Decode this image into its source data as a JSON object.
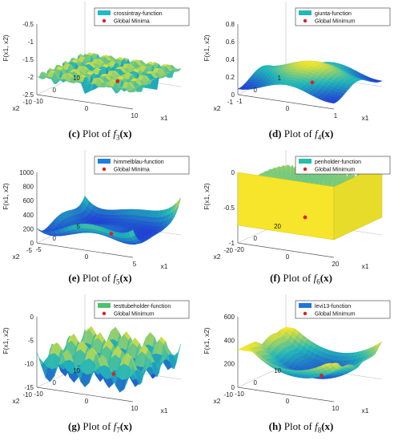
{
  "chart_data": [
    {
      "type": "surface",
      "caption_tag": "(c)",
      "caption_text": "Plot of",
      "caption_func": "f",
      "caption_sub": "3",
      "caption_arg": "(x)",
      "zlabel": "F(x1, x2)",
      "xlabel": "x1",
      "ylabel": "x2",
      "legend": [
        "crossintray-function",
        "Global Minima"
      ],
      "z_ticks": [
        "-0.5",
        "-1",
        "-1.5",
        "-2",
        "-2.5"
      ],
      "x1_ticks": [
        "-10",
        "0",
        "10"
      ],
      "x2_ticks": [
        "10",
        "0",
        "-10"
      ],
      "zlim": [
        -2.5,
        -0.5
      ],
      "xlim": [
        -10,
        10
      ],
      "ylim": [
        -10,
        10
      ]
    },
    {
      "type": "surface",
      "caption_tag": "(d)",
      "caption_text": "Plot of",
      "caption_func": "f",
      "caption_sub": "4",
      "caption_arg": "(x)",
      "zlabel": "F(x1, x2)",
      "xlabel": "x1",
      "ylabel": "x2",
      "legend": [
        "giunta-function",
        "Global Minimum"
      ],
      "z_ticks": [
        "0.8",
        "0.6",
        "0.4",
        "0.2",
        "0"
      ],
      "x1_ticks": [
        "-1",
        "0",
        "1"
      ],
      "x2_ticks": [
        "1",
        "0",
        "-1"
      ],
      "zlim": [
        0,
        0.8
      ],
      "xlim": [
        -1,
        1
      ],
      "ylim": [
        -1,
        1
      ]
    },
    {
      "type": "surface",
      "caption_tag": "(e)",
      "caption_text": "Plot of",
      "caption_func": "f",
      "caption_sub": "5",
      "caption_arg": "(x)",
      "zlabel": "F(x1, x2)",
      "xlabel": "x1",
      "ylabel": "x2",
      "legend": [
        "himmelblau-function",
        "Global Minima"
      ],
      "z_ticks": [
        "1000",
        "800",
        "600",
        "400",
        "200",
        "0"
      ],
      "x1_ticks": [
        "-5",
        "0",
        "5"
      ],
      "x2_ticks": [
        "5",
        "0",
        "-5"
      ],
      "zlim": [
        0,
        1000
      ],
      "xlim": [
        -5,
        5
      ],
      "ylim": [
        -5,
        5
      ]
    },
    {
      "type": "surface",
      "caption_tag": "(f)",
      "caption_text": "Plot of",
      "caption_func": "f",
      "caption_sub": "6",
      "caption_arg": "(x)",
      "zlabel": "F(x1, x2)",
      "xlabel": "x1",
      "ylabel": "x2",
      "legend": [
        "penholder-function",
        "Global Minimum"
      ],
      "z_ticks": [
        "0",
        "-0.5",
        "-1"
      ],
      "x1_ticks": [
        "-20",
        "0",
        "20"
      ],
      "x2_ticks": [
        "20",
        "0",
        "-20"
      ],
      "zlim": [
        -1,
        0
      ],
      "xlim": [
        -20,
        20
      ],
      "ylim": [
        -20,
        20
      ]
    },
    {
      "type": "surface",
      "caption_tag": "(g)",
      "caption_text": "Plot of",
      "caption_func": "f",
      "caption_sub": "7",
      "caption_arg": "(x)",
      "zlabel": "F(x1, x2)",
      "xlabel": "x1",
      "ylabel": "x2",
      "legend": [
        "testtubeholder-function",
        "Global Minimum"
      ],
      "z_ticks": [
        "0",
        "-5",
        "-10",
        "-15"
      ],
      "x1_ticks": [
        "-10",
        "0",
        "10"
      ],
      "x2_ticks": [
        "10",
        "0",
        "-10"
      ],
      "zlim": [
        -15,
        0
      ],
      "xlim": [
        -10,
        10
      ],
      "ylim": [
        -10,
        10
      ]
    },
    {
      "type": "surface",
      "caption_tag": "(h)",
      "caption_text": "Plot of",
      "caption_func": "f",
      "caption_sub": "8",
      "caption_arg": "(x)",
      "zlabel": "F(x1, x2)",
      "xlabel": "x1",
      "ylabel": "x2",
      "legend": [
        "levi13-function",
        "Global Minimum"
      ],
      "z_ticks": [
        "600",
        "400",
        "200",
        "0"
      ],
      "x1_ticks": [
        "-10",
        "0",
        "10"
      ],
      "x2_ticks": [
        "10",
        "0",
        "-10"
      ],
      "zlim": [
        0,
        600
      ],
      "xlim": [
        -10,
        10
      ],
      "ylim": [
        -10,
        10
      ]
    }
  ],
  "colors": {
    "surface_low": "#1f3fd4",
    "surface_mid": "#21b6b8",
    "surface_high": "#f6e52a",
    "legend_swatch_c": "#1fb9c8",
    "legend_swatch_d": "#22b8b8",
    "legend_swatch_e": "#1f7fdc",
    "legend_swatch_f": "#22c0a8",
    "legend_swatch_g": "#4cc26e",
    "legend_swatch_h": "#1f78d8",
    "minimum_marker": "#e02020"
  }
}
